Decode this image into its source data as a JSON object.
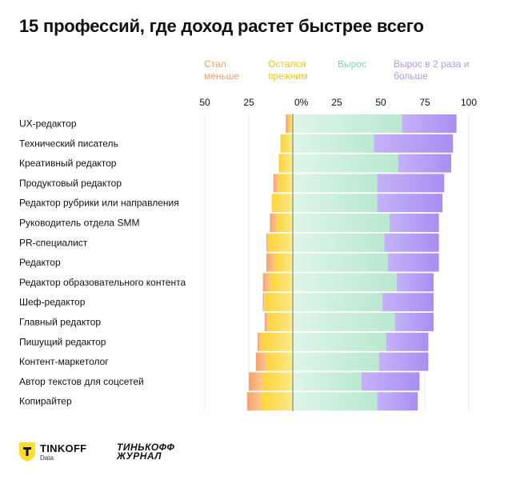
{
  "title": "15 профессий, где доход растет быстрее всего",
  "legend": {
    "decreased": "Стал меньше",
    "same": "Остался прежним",
    "growth": "Вырос",
    "double": "Вырос в 2 раза и больше"
  },
  "colors": {
    "decreased": "#f9b27d",
    "same": "#fcd73a",
    "growth": "#c5eed8",
    "double": "#b39af5",
    "zero_line": "#777777",
    "grid": "#e8e8e8"
  },
  "chart_data": {
    "type": "bar",
    "orientation": "horizontal-diverging",
    "title": "15 профессий, где доход растет быстрее всего",
    "ticks": [
      "50",
      "25",
      "0%",
      "25",
      "50",
      "75",
      "100"
    ],
    "tick_values": [
      -50,
      -25,
      0,
      25,
      50,
      75,
      100
    ],
    "xlim": [
      -50,
      100
    ],
    "grid": true,
    "legend_position": "top",
    "categories": [
      "UX-редактор",
      "Технический писатель",
      "Креативный редактор",
      "Продуктовый редактор",
      "Редактор рубрики или направления",
      "Руководитель отдела SMM",
      "PR-специалист",
      "Редактор",
      "Редактор образовательного контента",
      "Шеф-редактор",
      "Главный редактор",
      "Пишущий редактор",
      "Контент-маркетолог",
      "Автор текстов для соцсетей",
      "Копирайтер"
    ],
    "series": [
      {
        "name": "Стал меньше",
        "values": [
          2,
          0,
          0,
          3,
          0,
          4,
          1,
          5,
          4,
          1,
          2,
          2,
          6,
          8,
          8
        ]
      },
      {
        "name": "Остался прежним",
        "values": [
          2,
          7,
          8,
          8,
          12,
          9,
          14,
          10,
          13,
          16,
          14,
          18,
          15,
          17,
          18
        ]
      },
      {
        "name": "Вырос",
        "values": [
          62,
          46,
          60,
          48,
          48,
          55,
          52,
          54,
          59,
          51,
          58,
          53,
          49,
          39,
          48
        ]
      },
      {
        "name": "Вырос в 2 раза и больше",
        "values": [
          31,
          45,
          30,
          38,
          37,
          28,
          31,
          29,
          21,
          29,
          22,
          24,
          28,
          33,
          23
        ]
      }
    ]
  },
  "logos": {
    "tinkoff_name": "TINKOFF",
    "tinkoff_sub": "Data",
    "journal_line1": "ТИНЬКОФФ",
    "journal_line2": "ЖУРНАЛ"
  }
}
